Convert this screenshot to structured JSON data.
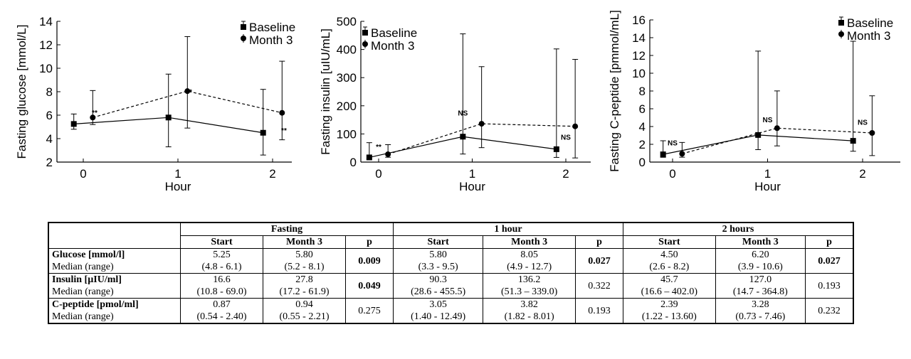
{
  "chart_data": [
    {
      "type": "line",
      "ylabel": "Fasting glucose [mmol/L]",
      "xlabel": "Hour",
      "ylim": [
        2,
        14
      ],
      "yticks": [
        2,
        4,
        6,
        8,
        10,
        12,
        14
      ],
      "xticks": [
        0,
        1,
        2
      ],
      "series": [
        {
          "name": "Baseline",
          "x": [
            0,
            1,
            2
          ],
          "values": [
            5.25,
            5.8,
            4.5
          ],
          "low": [
            4.8,
            3.3,
            2.6
          ],
          "high": [
            6.1,
            9.5,
            8.2
          ]
        },
        {
          "name": "Month 3",
          "x": [
            0,
            1,
            2
          ],
          "values": [
            5.8,
            8.05,
            6.2
          ],
          "low": [
            5.2,
            4.9,
            3.9
          ],
          "high": [
            8.1,
            12.7,
            10.6
          ]
        }
      ],
      "annotations": [
        "**",
        "**",
        "**"
      ],
      "annotation_x": [
        0.12,
        1.12,
        2.12
      ],
      "annotation_y": [
        6.0,
        7.8,
        4.5
      ]
    },
    {
      "type": "line",
      "ylabel": "Fasting insulin [uIU/mL]",
      "xlabel": "Hour",
      "ylim": [
        0,
        500
      ],
      "yticks": [
        0,
        100,
        200,
        300,
        400,
        500
      ],
      "xticks": [
        0,
        1,
        2
      ],
      "series": [
        {
          "name": "Baseline",
          "x": [
            0,
            1,
            2
          ],
          "values": [
            16.6,
            90.3,
            45.7
          ],
          "low": [
            10.8,
            28.6,
            16.6
          ],
          "high": [
            69.0,
            455.5,
            402.0
          ]
        },
        {
          "name": "Month 3",
          "x": [
            0,
            1,
            2
          ],
          "values": [
            27.8,
            136.2,
            127.0
          ],
          "low": [
            17.2,
            51.3,
            14.7
          ],
          "high": [
            61.9,
            339.0,
            364.8
          ]
        }
      ],
      "annotations": [
        "**",
        "NS",
        "NS"
      ],
      "annotation_x": [
        0.0,
        0.9,
        2.0
      ],
      "annotation_y": [
        45,
        165,
        80
      ]
    },
    {
      "type": "line",
      "ylabel": "Fasting C-peptide [pmmol/mL]",
      "xlabel": "Hour",
      "ylim": [
        0,
        16
      ],
      "yticks": [
        0,
        2,
        4,
        6,
        8,
        10,
        12,
        14,
        16
      ],
      "xticks": [
        0,
        1,
        2
      ],
      "series": [
        {
          "name": "Baseline",
          "x": [
            0,
            1,
            2
          ],
          "values": [
            0.87,
            3.05,
            2.39
          ],
          "low": [
            0.54,
            1.4,
            1.22
          ],
          "high": [
            2.4,
            12.49,
            13.6
          ]
        },
        {
          "name": "Month 3",
          "x": [
            0,
            1,
            2
          ],
          "values": [
            0.94,
            3.82,
            3.28
          ],
          "low": [
            0.55,
            1.82,
            0.73
          ],
          "high": [
            2.21,
            8.01,
            7.46
          ]
        }
      ],
      "annotations": [
        "NS",
        "NS",
        "NS"
      ],
      "annotation_x": [
        0.0,
        1.0,
        2.0
      ],
      "annotation_y": [
        1.9,
        4.5,
        4.2
      ]
    }
  ],
  "legend": {
    "baseline": "Baseline",
    "month3": "Month 3"
  },
  "table": {
    "groups": [
      "Fasting",
      "1 hour",
      "2 hours"
    ],
    "subheaders": [
      "Start",
      "Month 3",
      "p"
    ],
    "rows": [
      {
        "label": "Glucose [mmol/l]",
        "sublabel": "Median (range)",
        "cells": [
          {
            "median": "5.25",
            "range": "(4.8 - 6.1)"
          },
          {
            "median": "5.80",
            "range": "(5.2 - 8.1)"
          },
          {
            "p": "0.009",
            "bold": true
          },
          {
            "median": "5.80",
            "range": "(3.3 - 9.5)"
          },
          {
            "median": "8.05",
            "range": "(4.9 - 12.7)"
          },
          {
            "p": "0.027",
            "bold": true
          },
          {
            "median": "4.50",
            "range": "(2.6 - 8.2)"
          },
          {
            "median": "6.20",
            "range": "(3.9 - 10.6)"
          },
          {
            "p": "0.027",
            "bold": true
          }
        ]
      },
      {
        "label": "Insulin [µIU/ml]",
        "sublabel": "Median (range)",
        "cells": [
          {
            "median": "16.6",
            "range": "(10.8 - 69.0)"
          },
          {
            "median": "27.8",
            "range": "(17.2 - 61.9)"
          },
          {
            "p": "0.049",
            "bold": true
          },
          {
            "median": "90.3",
            "range": "(28.6 - 455.5)"
          },
          {
            "median": "136.2",
            "range": "(51.3 – 339.0)"
          },
          {
            "p": "0.322",
            "bold": false
          },
          {
            "median": "45.7",
            "range": "(16.6 – 402.0)"
          },
          {
            "median": "127.0",
            "range": "(14.7 - 364.8)"
          },
          {
            "p": "0.193",
            "bold": false
          }
        ]
      },
      {
        "label": "C-peptide [pmol/ml]",
        "sublabel": "Median (range)",
        "cells": [
          {
            "median": "0.87",
            "range": "(0.54 - 2.40)"
          },
          {
            "median": "0.94",
            "range": "(0.55 - 2.21)"
          },
          {
            "p": "0.275",
            "bold": false
          },
          {
            "median": "3.05",
            "range": "(1.40 - 12.49)"
          },
          {
            "median": "3.82",
            "range": "(1.82 - 8.01)"
          },
          {
            "p": "0.193",
            "bold": false
          },
          {
            "median": "2.39",
            "range": "(1.22 - 13.60)"
          },
          {
            "median": "3.28",
            "range": "(0.73 - 7.46)"
          },
          {
            "p": "0.232",
            "bold": false
          }
        ]
      }
    ]
  }
}
